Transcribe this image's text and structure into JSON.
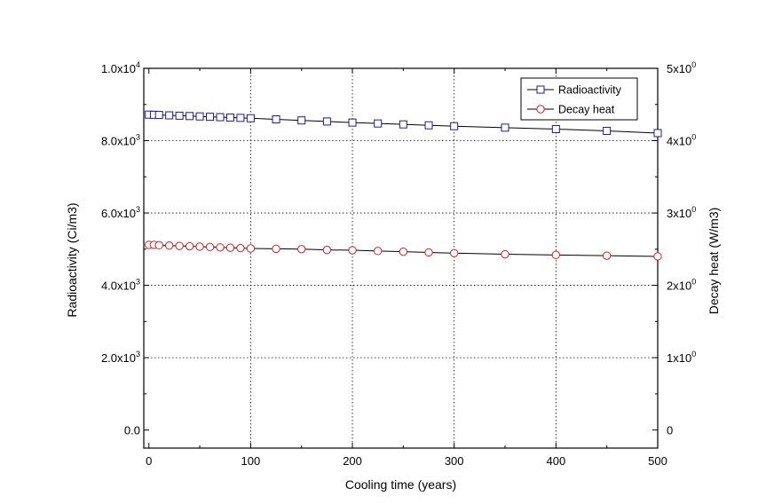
{
  "chart_data": {
    "type": "line",
    "xlabel": "Cooling time (years)",
    "ylabel_left": "Radioactivity (Ci/m3)",
    "ylabel_right": "Decay heat (W/m3)",
    "xlim": [
      -5,
      500
    ],
    "ylim_left": [
      -500,
      10000
    ],
    "ylim_right": [
      -0.25,
      5
    ],
    "grid": true,
    "grid_style": "dotted",
    "legend_position": "top-right",
    "x_ticks": [
      {
        "value": 0,
        "label": "0"
      },
      {
        "value": 100,
        "label": "100"
      },
      {
        "value": 200,
        "label": "200"
      },
      {
        "value": 300,
        "label": "300"
      },
      {
        "value": 400,
        "label": "400"
      },
      {
        "value": 500,
        "label": "500"
      }
    ],
    "y_ticks_left": [
      {
        "value": 0,
        "label": "0.0"
      },
      {
        "value": 2000,
        "label": "2.0x10",
        "sup": "3"
      },
      {
        "value": 4000,
        "label": "4.0x10",
        "sup": "3"
      },
      {
        "value": 6000,
        "label": "6.0x10",
        "sup": "3"
      },
      {
        "value": 8000,
        "label": "8.0x10",
        "sup": "3"
      },
      {
        "value": 10000,
        "label": "1.0x10",
        "sup": "4"
      }
    ],
    "y_ticks_right": [
      {
        "value": 0,
        "label": "0"
      },
      {
        "value": 1,
        "label": "1x10",
        "sup": "0"
      },
      {
        "value": 2,
        "label": "2x10",
        "sup": "0"
      },
      {
        "value": 3,
        "label": "3x10",
        "sup": "0"
      },
      {
        "value": 4,
        "label": "4x10",
        "sup": "0"
      },
      {
        "value": 5,
        "label": "5x10",
        "sup": "0"
      }
    ],
    "series": [
      {
        "name": "Radioactivity",
        "axis": "left",
        "marker": "square",
        "color": "#1a1a9c",
        "x": [
          0,
          5,
          10,
          20,
          30,
          40,
          50,
          60,
          70,
          80,
          90,
          100,
          125,
          150,
          175,
          200,
          225,
          250,
          275,
          300,
          350,
          400,
          450,
          500
        ],
        "y": [
          8720,
          8715,
          8710,
          8700,
          8690,
          8680,
          8670,
          8660,
          8650,
          8640,
          8630,
          8620,
          8590,
          8560,
          8530,
          8500,
          8475,
          8450,
          8425,
          8400,
          8360,
          8320,
          8270,
          8210
        ]
      },
      {
        "name": "Decay heat",
        "axis": "right",
        "marker": "circle",
        "color": "#d02020",
        "x": [
          0,
          5,
          10,
          20,
          30,
          40,
          50,
          60,
          70,
          80,
          90,
          100,
          125,
          150,
          175,
          200,
          225,
          250,
          275,
          300,
          350,
          400,
          450,
          500
        ],
        "y": [
          2.56,
          2.56,
          2.555,
          2.55,
          2.545,
          2.54,
          2.535,
          2.53,
          2.525,
          2.52,
          2.515,
          2.51,
          2.505,
          2.5,
          2.49,
          2.485,
          2.475,
          2.465,
          2.455,
          2.445,
          2.43,
          2.42,
          2.41,
          2.4
        ]
      }
    ]
  },
  "colors": {
    "line": "#000000",
    "radioactivity": "#1a1a9c",
    "decay_heat": "#d02020",
    "grid": "#000000"
  }
}
